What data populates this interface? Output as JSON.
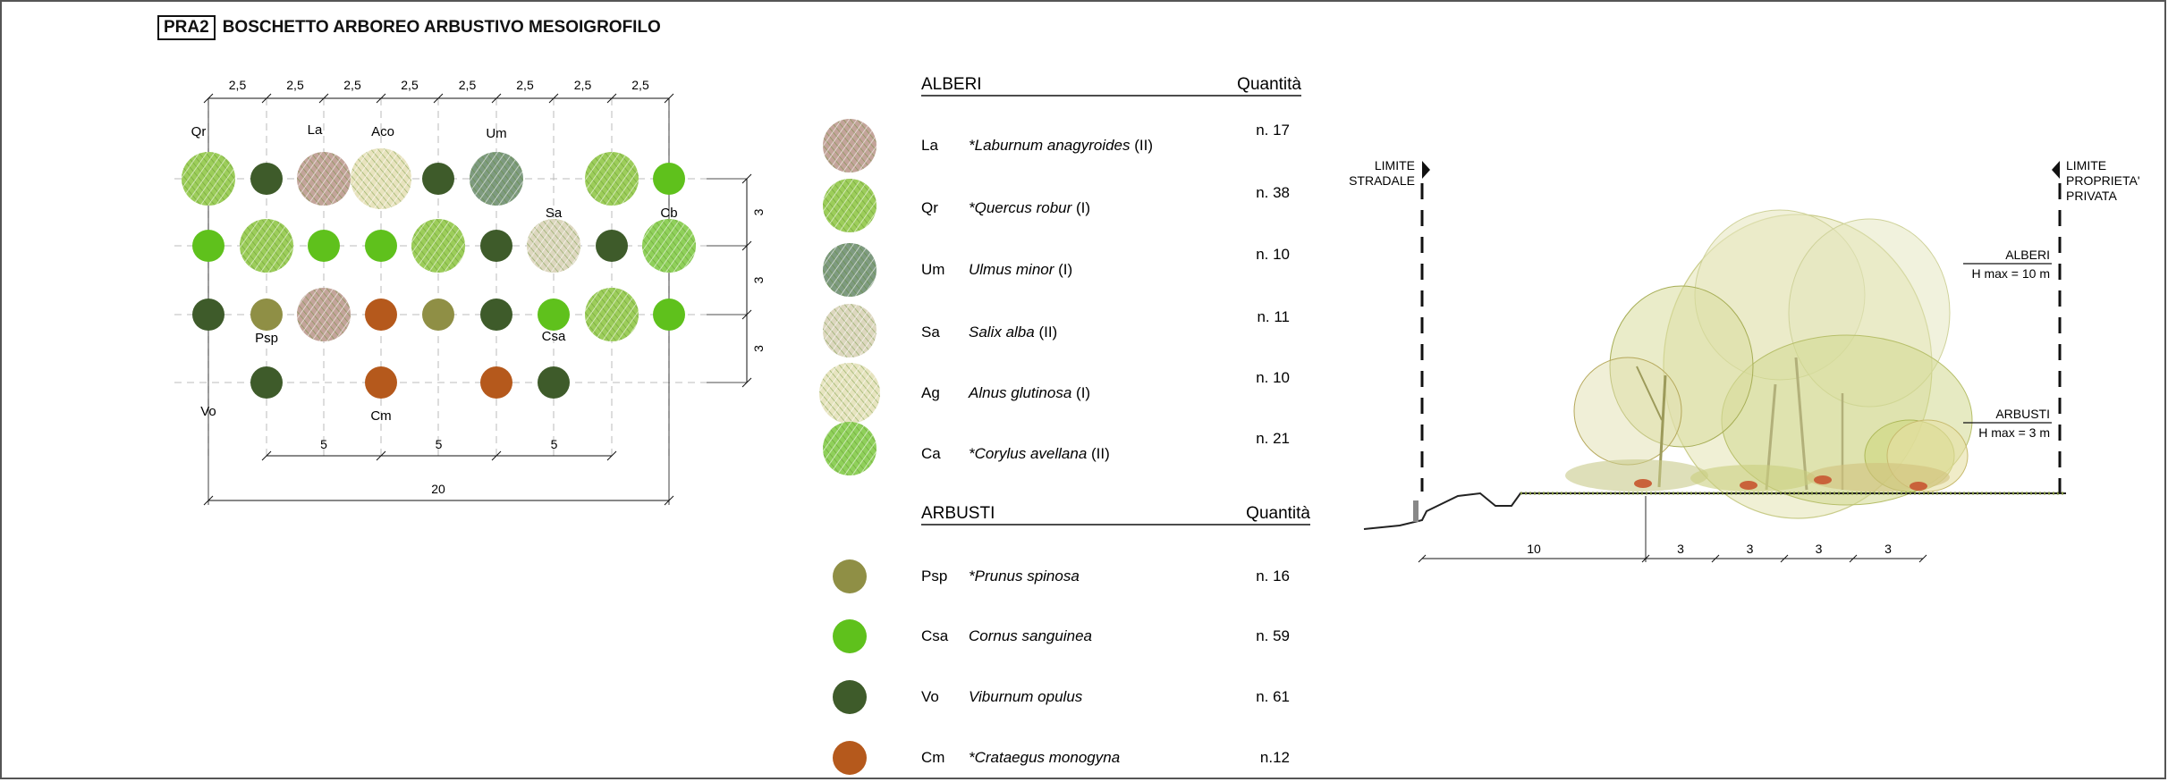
{
  "title": {
    "code": "PRA2",
    "text": "BOSCHETTO ARBOREO ARBUSTIVO MESOIGROFILO"
  },
  "colors": {
    "Psp": "#8f8f45",
    "Csa": "#5fc11c",
    "Vo": "#3e5b2a",
    "Cm": "#b5591c",
    "Qr": "#9ccd5a",
    "La": "#c3a49a",
    "Aco": "#e8e3be",
    "Um": "#7e9a80",
    "Sa": "#ddd7bf",
    "Ag": "#e7e4c0",
    "Cb": "#8fd05a"
  },
  "plan": {
    "top_dims": [
      "2,5",
      "2,5",
      "2,5",
      "2,5",
      "2,5",
      "2,5",
      "2,5",
      "2,5"
    ],
    "bottom_dims": [
      "5",
      "5",
      "5"
    ],
    "total_dim": "20",
    "right_dims": [
      "3",
      "3",
      "3"
    ],
    "labels": [
      "Qr",
      "La",
      "Aco",
      "Um",
      "Sa",
      "Cb",
      "Psp",
      "Csa",
      "Vo",
      "Cm"
    ],
    "grid": [
      [
        "Qr",
        "Vo",
        "La",
        "Aco",
        "Vo",
        "Um",
        "Qr",
        "Csa"
      ],
      [
        "Csa",
        "Qr",
        "Csa",
        "Csa",
        "Qr",
        "Vo",
        "Sa",
        "Vo",
        "Cb"
      ],
      [
        "Vo",
        "Psp",
        "La",
        "Cm",
        "Psp",
        "Vo",
        "Csa",
        "Qr",
        "Csa"
      ],
      [
        "Vo",
        "Cm",
        "Cm",
        "Vo"
      ]
    ]
  },
  "legend": {
    "trees_header": "ALBERI",
    "shrubs_header": "ARBUSTI",
    "qty_header": "Quantità",
    "trees": [
      {
        "code": "La",
        "name": "*Laburnum anagyroides",
        "cls": "(II)",
        "qty": "n. 17"
      },
      {
        "code": "Qr",
        "name": "*Quercus robur",
        "cls": "(I)",
        "qty": "n. 38"
      },
      {
        "code": "Um",
        "name": "Ulmus minor",
        "cls": "(I)",
        "qty": "n. 10"
      },
      {
        "code": "Sa",
        "name": "Salix alba",
        "cls": "(II)",
        "qty": "n. 11"
      },
      {
        "code": "Ag",
        "name": "Alnus glutinosa",
        "cls": "(I)",
        "qty": "n. 10"
      },
      {
        "code": "Ca",
        "name": "*Corylus avellana",
        "cls": "(II)",
        "qty": "n. 21"
      }
    ],
    "shrubs": [
      {
        "code": "Psp",
        "name": "*Prunus spinosa",
        "qty": "n. 16"
      },
      {
        "code": "Csa",
        "name": "Cornus sanguinea",
        "qty": "n. 59"
      },
      {
        "code": "Vo",
        "name": "Viburnum opulus",
        "qty": "n. 61"
      },
      {
        "code": "Cm",
        "name": "*Crataegus monogyna",
        "qty": "n.12"
      }
    ]
  },
  "section": {
    "limit_left": [
      "LIMITE",
      "STRADALE"
    ],
    "limit_right": [
      "LIMITE",
      "PROPRIETA'",
      "PRIVATA"
    ],
    "trees_label": "ALBERI",
    "trees_hmax": "H max = 10 m",
    "shrubs_label": "ARBUSTI",
    "shrubs_hmax": "H max = 3 m",
    "dims": [
      "10",
      "3",
      "3",
      "3",
      "3"
    ]
  }
}
